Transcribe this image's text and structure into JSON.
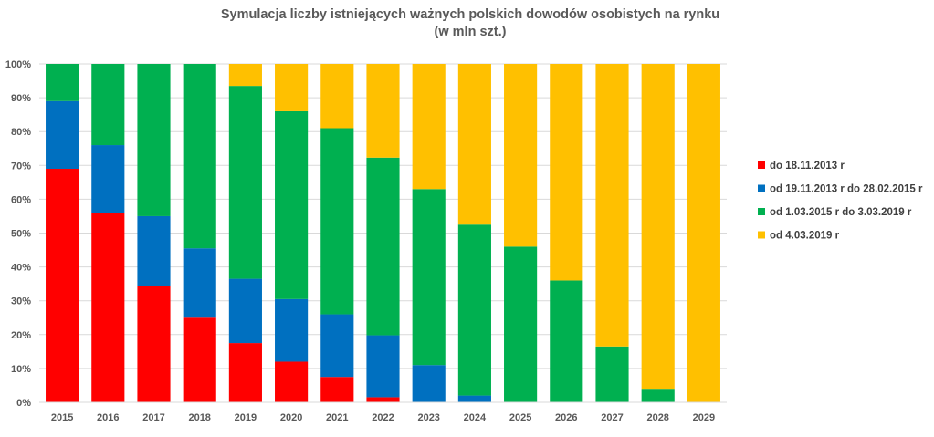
{
  "chart_data": {
    "type": "bar",
    "stacked": true,
    "title": "Symulacja liczby istniejących ważnych polskich dowodów osobistych na rynku",
    "subtitle": "(w mln szt.)",
    "xlabel": "",
    "ylabel": "",
    "ylim": [
      0,
      100
    ],
    "y_unit": "%",
    "y_ticks": [
      "0%",
      "10%",
      "20%",
      "30%",
      "40%",
      "50%",
      "60%",
      "70%",
      "80%",
      "90%",
      "100%"
    ],
    "grid": true,
    "legend_position": "right",
    "categories": [
      "2015",
      "2016",
      "2017",
      "2018",
      "2019",
      "2020",
      "2021",
      "2022",
      "2023",
      "2024",
      "2025",
      "2026",
      "2027",
      "2028",
      "2029"
    ],
    "series": [
      {
        "name": "do 18.11.2013 r",
        "color": "#ff0000",
        "values": [
          69,
          56,
          34.5,
          25,
          17.5,
          12,
          7.5,
          1.5,
          0,
          0,
          0,
          0,
          0,
          0,
          0
        ]
      },
      {
        "name": "od 19.11.2013 r do 28.02.2015 r",
        "color": "#0070c0",
        "values": [
          20,
          20,
          20.5,
          20.5,
          19,
          18.5,
          18.5,
          18.3,
          11,
          2,
          0,
          0,
          0,
          0,
          0
        ]
      },
      {
        "name": "od 1.03.2015 r do 3.03.2019 r",
        "color": "#00b050",
        "values": [
          11,
          24,
          45,
          54.5,
          57,
          55.5,
          55,
          52.5,
          52,
          50.5,
          46,
          36,
          16.5,
          4,
          0
        ]
      },
      {
        "name": "od 4.03.2019 r",
        "color": "#ffc000",
        "values": [
          0,
          0,
          0,
          0,
          6.5,
          14,
          19,
          27.7,
          37,
          47.5,
          54,
          64,
          83.5,
          96,
          100
        ]
      }
    ]
  }
}
